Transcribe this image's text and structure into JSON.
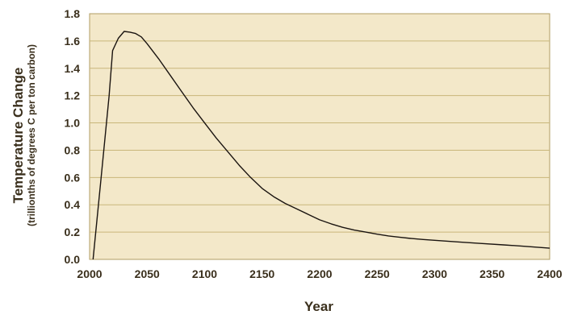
{
  "chart_data": {
    "type": "line",
    "xlabel": "Year",
    "ylabel": "Temperature Change",
    "ylabel_sub": "(trillionths of degrees C per ton carbon)",
    "xlim": [
      2000,
      2400
    ],
    "ylim": [
      0,
      1.8
    ],
    "xticks": [
      "2000",
      "2050",
      "2100",
      "2150",
      "2200",
      "2250",
      "2300",
      "2350",
      "2400"
    ],
    "yticks": [
      "0.0",
      "0.2",
      "0.4",
      "0.6",
      "0.8",
      "1.0",
      "1.2",
      "1.4",
      "1.6",
      "1.8"
    ],
    "grid": true,
    "colors": {
      "plot_bg": "#f3e8c9",
      "grid": "#c9b67a",
      "frame": "#b09d63",
      "line": "#1a1410",
      "text": "#3a2f1c"
    },
    "series": [
      {
        "x": [
          2003,
          2010,
          2017,
          2020,
          2025,
          2030,
          2035,
          2040,
          2045,
          2050,
          2060,
          2070,
          2080,
          2090,
          2100,
          2110,
          2120,
          2130,
          2140,
          2150,
          2160,
          2170,
          2180,
          2190,
          2200,
          2210,
          2220,
          2230,
          2240,
          2250,
          2260,
          2270,
          2280,
          2290,
          2300,
          2320,
          2340,
          2360,
          2380,
          2400
        ],
        "y": [
          0.0,
          0.6,
          1.2,
          1.53,
          1.62,
          1.67,
          1.665,
          1.655,
          1.63,
          1.58,
          1.47,
          1.35,
          1.23,
          1.11,
          1.0,
          0.89,
          0.79,
          0.69,
          0.6,
          0.52,
          0.46,
          0.41,
          0.37,
          0.33,
          0.29,
          0.26,
          0.235,
          0.215,
          0.2,
          0.185,
          0.172,
          0.162,
          0.153,
          0.146,
          0.14,
          0.128,
          0.117,
          0.106,
          0.095,
          0.082
        ]
      }
    ]
  }
}
